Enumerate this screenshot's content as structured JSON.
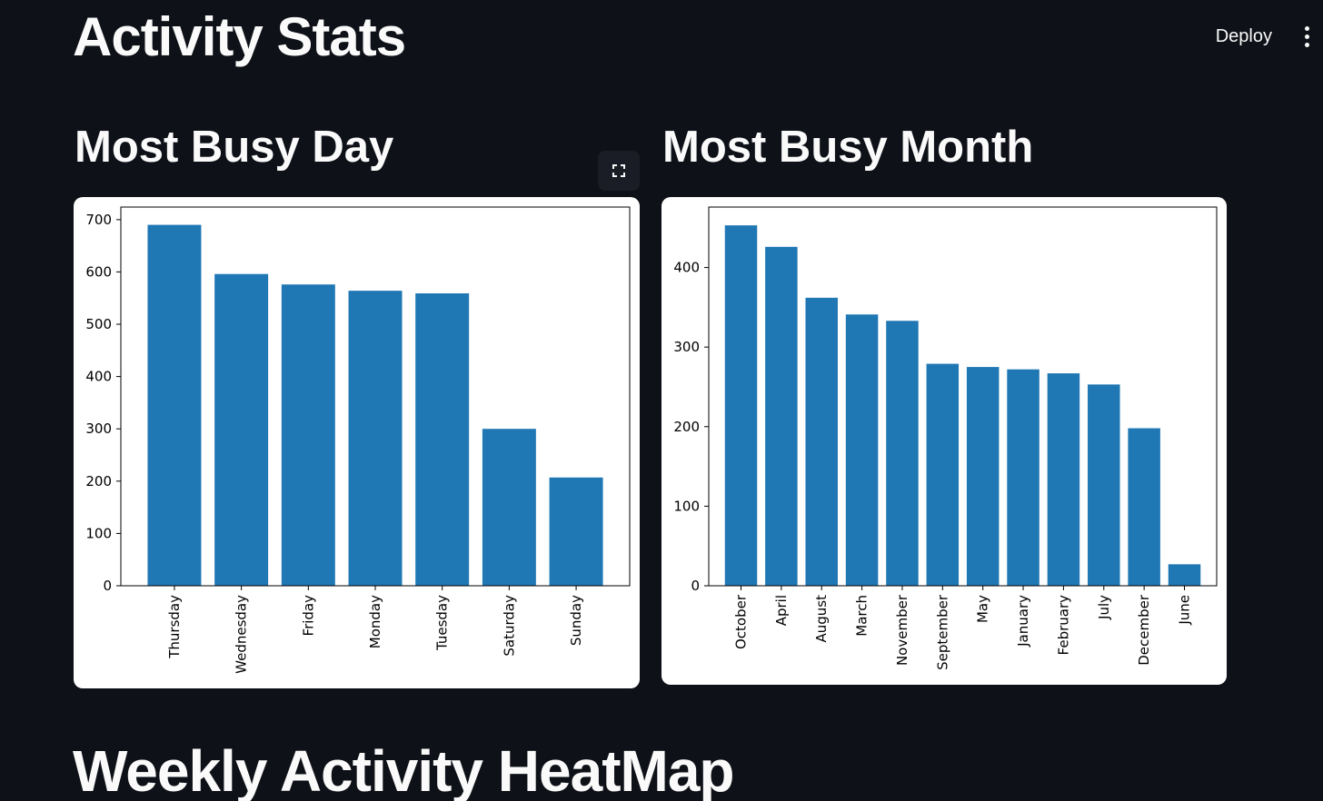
{
  "header": {
    "deploy_label": "Deploy",
    "menu_icon": "kebab-menu-icon"
  },
  "page": {
    "title": "Activity Stats"
  },
  "sections": {
    "busy_day_title": "Most Busy Day",
    "busy_month_title": "Most Busy Month",
    "heatmap_title": "Weekly Activity HeatMap"
  },
  "icons": {
    "fullscreen": "fullscreen-icon"
  },
  "colors": {
    "background": "#0e1117",
    "text": "#fafafa",
    "bar": "#1f77b4"
  },
  "chart_data": [
    {
      "type": "bar",
      "title": "",
      "xlabel": "",
      "ylabel": "",
      "categories": [
        "Thursday",
        "Wednesday",
        "Friday",
        "Monday",
        "Tuesday",
        "Saturday",
        "Sunday"
      ],
      "values": [
        690,
        596,
        576,
        564,
        559,
        300,
        207
      ],
      "ylim": [
        0,
        724
      ],
      "yticks": [
        0,
        100,
        200,
        300,
        400,
        500,
        600,
        700
      ],
      "grid": false,
      "x_tick_rotation": "vertical"
    },
    {
      "type": "bar",
      "title": "",
      "xlabel": "",
      "ylabel": "",
      "categories": [
        "October",
        "April",
        "August",
        "March",
        "November",
        "September",
        "May",
        "January",
        "February",
        "July",
        "December",
        "June"
      ],
      "values": [
        453,
        426,
        362,
        341,
        333,
        279,
        275,
        272,
        267,
        253,
        198,
        27
      ],
      "ylim": [
        0,
        476
      ],
      "yticks": [
        0,
        100,
        200,
        300,
        400
      ],
      "grid": false,
      "x_tick_rotation": "vertical"
    }
  ]
}
